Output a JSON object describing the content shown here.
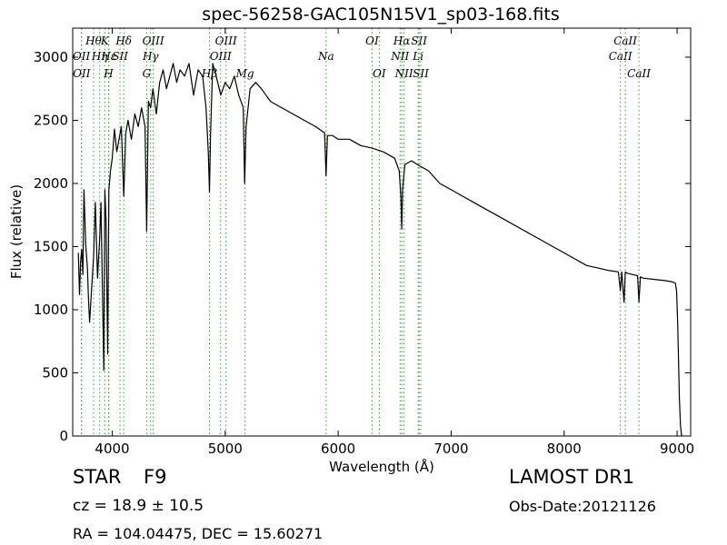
{
  "chart_data": {
    "type": "line",
    "title": "spec-56258-GAC105N15V1_sp03-168.fits",
    "xlabel": "Wavelength (Å)",
    "ylabel": "Flux (relative)",
    "xlim": [
      3650,
      9120
    ],
    "ylim": [
      0,
      3230
    ],
    "xticks": [
      4000,
      5000,
      6000,
      7000,
      8000,
      9000
    ],
    "yticks": [
      0,
      500,
      1000,
      1500,
      2000,
      2500,
      3000
    ],
    "grid": false,
    "series": [
      {
        "color": "#000000",
        "x": [
          3700,
          3710,
          3720,
          3730,
          3740,
          3750,
          3765,
          3780,
          3790,
          3800,
          3820,
          3835,
          3850,
          3870,
          3890,
          3900,
          3915,
          3925,
          3935,
          3945,
          3960,
          3970,
          3985,
          4000,
          4020,
          4040,
          4060,
          4080,
          4102,
          4120,
          4140,
          4170,
          4200,
          4230,
          4260,
          4290,
          4305,
          4320,
          4340,
          4360,
          4390,
          4420,
          4450,
          4480,
          4510,
          4540,
          4570,
          4600,
          4640,
          4680,
          4720,
          4760,
          4800,
          4830,
          4850,
          4861,
          4870,
          4890,
          4920,
          4960,
          5000,
          5040,
          5080,
          5120,
          5160,
          5172,
          5185,
          5220,
          5270,
          5320,
          5400,
          5500,
          5600,
          5700,
          5800,
          5880,
          5893,
          5905,
          5950,
          6000,
          6100,
          6200,
          6300,
          6400,
          6500,
          6540,
          6555,
          6563,
          6570,
          6590,
          6650,
          6700,
          6800,
          6900,
          7000,
          7100,
          7200,
          7300,
          7400,
          7500,
          7600,
          7700,
          7800,
          7900,
          8000,
          8100,
          8200,
          8300,
          8400,
          8480,
          8498,
          8510,
          8530,
          8542,
          8555,
          8600,
          8650,
          8662,
          8675,
          8700,
          8800,
          8900,
          8960,
          8985,
          8995,
          9005,
          9020,
          9030,
          9040
        ],
        "y": [
          1450,
          1120,
          1380,
          1480,
          1280,
          1950,
          1520,
          1330,
          1080,
          900,
          1200,
          1420,
          1850,
          1250,
          1580,
          1850,
          1080,
          520,
          1950,
          1700,
          650,
          1950,
          2100,
          2200,
          2430,
          2250,
          2350,
          2450,
          1900,
          2400,
          2500,
          2350,
          2550,
          2450,
          2600,
          2450,
          1620,
          2650,
          2600,
          2750,
          2550,
          2800,
          2900,
          2750,
          2850,
          2950,
          2800,
          2900,
          2850,
          2950,
          2700,
          2900,
          2850,
          2600,
          2250,
          1930,
          2400,
          2950,
          2850,
          2700,
          2800,
          2750,
          2850,
          2700,
          2600,
          2000,
          2450,
          2750,
          2800,
          2750,
          2650,
          2600,
          2550,
          2500,
          2450,
          2400,
          2060,
          2380,
          2380,
          2350,
          2350,
          2300,
          2280,
          2250,
          2200,
          2100,
          1900,
          1640,
          1950,
          2150,
          2180,
          2150,
          2100,
          2000,
          1950,
          1900,
          1850,
          1800,
          1750,
          1700,
          1650,
          1600,
          1550,
          1500,
          1450,
          1400,
          1350,
          1330,
          1310,
          1300,
          1150,
          1300,
          1060,
          1300,
          1290,
          1280,
          1270,
          1060,
          1260,
          1250,
          1240,
          1230,
          1220,
          1210,
          1150,
          900,
          300,
          80,
          0
        ]
      }
    ],
    "line_markers": [
      {
        "name": "H9",
        "wl": 3835,
        "label": "Hθ",
        "row": 1
      },
      {
        "name": "Hη",
        "wl": 3889,
        "label": "Hη",
        "row": 2
      },
      {
        "name": "K",
        "wl": 3934,
        "label": "K",
        "row": 1
      },
      {
        "name": "Hε",
        "wl": 3970,
        "label": "Hε",
        "row": 2
      },
      {
        "name": "H",
        "wl": 3968,
        "label": "H",
        "row": 3
      },
      {
        "name": "SII_4069",
        "wl": 4069,
        "label": "SII",
        "row": 2
      },
      {
        "name": "Hδ",
        "wl": 4102,
        "label": "Hδ",
        "row": 1
      },
      {
        "name": "Hγ",
        "wl": 4340,
        "label": "Hγ",
        "row": 2
      },
      {
        "name": "G",
        "wl": 4305,
        "label": "G",
        "row": 3
      },
      {
        "name": "OIII_4363",
        "wl": 4363,
        "label": "OIII",
        "row": 1
      },
      {
        "name": "OII_3727",
        "wl": 3727,
        "label": "OII",
        "row": 2
      },
      {
        "name": "OII_3729",
        "wl": 3729,
        "label": "OII",
        "row": 3
      },
      {
        "name": "Hβ",
        "wl": 4861,
        "label": "Hβ",
        "row": 3
      },
      {
        "name": "OIII_4959",
        "wl": 4959,
        "label": "OIII",
        "row": 2
      },
      {
        "name": "OIII_5007",
        "wl": 5007,
        "label": "OIII",
        "row": 1
      },
      {
        "name": "Mg",
        "wl": 5175,
        "label": "Mg",
        "row": 3
      },
      {
        "name": "Na",
        "wl": 5893,
        "label": "Na",
        "row": 2
      },
      {
        "name": "OI_6300",
        "wl": 6300,
        "label": "OI",
        "row": 1
      },
      {
        "name": "OI_6364",
        "wl": 6364,
        "label": "OI",
        "row": 3
      },
      {
        "name": "NII_6548",
        "wl": 6548,
        "label": "NII",
        "row": 2
      },
      {
        "name": "Hα",
        "wl": 6563,
        "label": "Hα",
        "row": 1
      },
      {
        "name": "NII_6583",
        "wl": 6583,
        "label": "NII",
        "row": 3
      },
      {
        "name": "Li",
        "wl": 6708,
        "label": "Li",
        "row": 2
      },
      {
        "name": "SII_6716",
        "wl": 6716,
        "label": "SII",
        "row": 1
      },
      {
        "name": "SII_6731",
        "wl": 6731,
        "label": "SII",
        "row": 3
      },
      {
        "name": "CaII_8498",
        "wl": 8498,
        "label": "CaII",
        "row": 2
      },
      {
        "name": "CaII_8542",
        "wl": 8542,
        "label": "CaII",
        "row": 1
      },
      {
        "name": "CaII_8662",
        "wl": 8662,
        "label": "CaII",
        "row": 3
      }
    ],
    "marker_color": "#2ca02c"
  },
  "info": {
    "obj_class": "STAR",
    "obj_subclass": "F9",
    "redshift": "cz = 18.9  ± 10.5",
    "coords": "RA = 104.04475, DEC = 15.60271",
    "survey": "LAMOST DR1",
    "obs_date": "Obs-Date:20121126"
  }
}
